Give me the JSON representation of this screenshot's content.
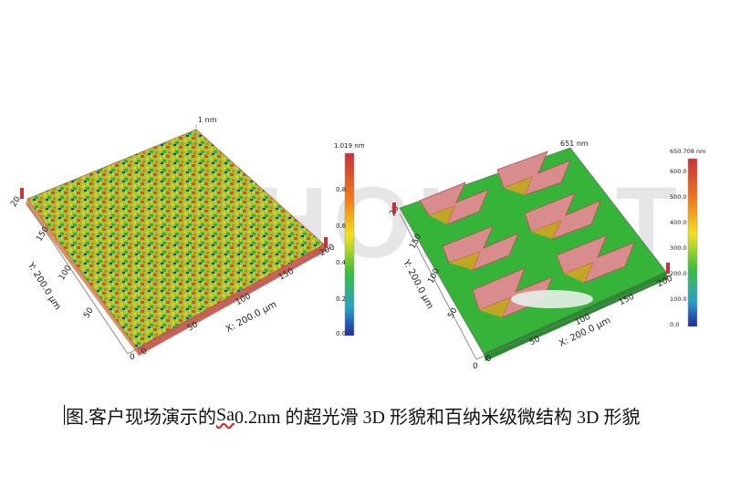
{
  "watermark": "HOLTET",
  "left_plot": {
    "peak_label": "1 nm",
    "colorbar": {
      "max_label": "1.019 nm",
      "ticks": [
        "0.8",
        "0.6",
        "0.4",
        "0.2",
        "0.0"
      ]
    },
    "x_axis": {
      "title": "X: 200.0 µm",
      "ticks": [
        "0",
        "50",
        "100",
        "150",
        "200"
      ]
    },
    "y_axis": {
      "title": "Y: 200.0 µm",
      "ticks": [
        "0",
        "50",
        "100",
        "150",
        "200"
      ]
    },
    "z_tick": "20"
  },
  "right_plot": {
    "peak_label": "651 nm",
    "colorbar": {
      "max_label": "650.708 nm",
      "ticks": [
        "600.0",
        "500.0",
        "400.0",
        "300.0",
        "200.0",
        "100.0",
        "0.0"
      ]
    },
    "x_axis": {
      "title": "X: 200.0 µm",
      "ticks": [
        "0",
        "50",
        "100",
        "150",
        "200"
      ]
    },
    "y_axis": {
      "title": "Y: 200.0 µm",
      "ticks": [
        "0",
        "50",
        "100",
        "150",
        "200"
      ]
    },
    "z_tick": "20"
  },
  "caption": {
    "prefix": "图.客户现场演示的 ",
    "sa": "Sa",
    "suffix": " 0.2nm 的超光滑 3D 形貌和百纳米级微结构 3D 形貌"
  },
  "colors": {
    "green": "#35b23a",
    "yellow": "#f2d21f",
    "orange": "#f08a1c",
    "red": "#d83a28",
    "blue": "#1f3c9a",
    "pink": "#d88c8c"
  }
}
